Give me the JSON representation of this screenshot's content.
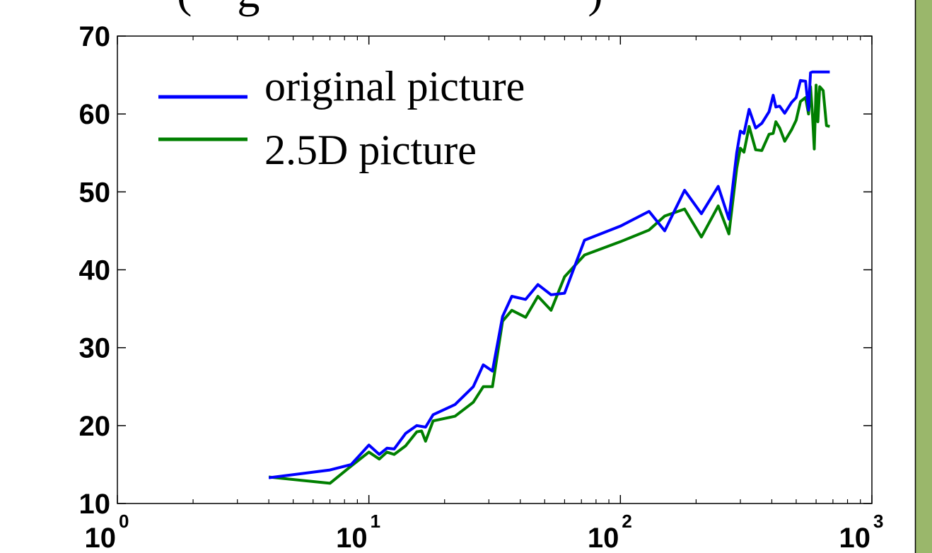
{
  "chart_data": {
    "type": "line",
    "title_fragment": "(    g                             )",
    "xscale": "log",
    "xlim": [
      1,
      1000
    ],
    "ylim": [
      10,
      70
    ],
    "grid": false,
    "legend_position": "top-left",
    "x_ticks": [
      {
        "value": 1,
        "base": "10",
        "exp": "0"
      },
      {
        "value": 10,
        "base": "10",
        "exp": "1"
      },
      {
        "value": 100,
        "base": "10",
        "exp": "2"
      },
      {
        "value": 1000,
        "base": "10",
        "exp": "3"
      }
    ],
    "y_ticks": [
      "10",
      "20",
      "30",
      "40",
      "50",
      "60",
      "70"
    ],
    "series": [
      {
        "name": "original picture",
        "color": "#0000ff",
        "x": [
          4,
          7,
          8.5,
          10,
          11,
          11.8,
          12.6,
          14,
          15.5,
          16.8,
          18,
          22,
          26,
          28.5,
          31,
          34,
          37,
          42,
          47,
          53,
          60,
          72,
          100,
          130,
          150,
          180,
          210,
          245,
          270,
          290,
          300,
          310,
          325,
          345,
          365,
          390,
          405,
          415,
          430,
          450,
          480,
          500,
          520,
          545,
          560,
          570,
          580,
          590,
          600,
          610,
          620,
          640,
          660,
          680
        ],
        "y": [
          13.3,
          14.3,
          15.0,
          17.5,
          16.3,
          17.1,
          17.0,
          19.0,
          20.0,
          19.8,
          21.4,
          22.7,
          25.0,
          27.8,
          27.0,
          34.0,
          36.6,
          36.2,
          38.1,
          36.8,
          37.0,
          43.8,
          45.6,
          47.5,
          45.0,
          50.2,
          47.2,
          50.7,
          46.5,
          55.0,
          57.8,
          57.5,
          60.6,
          58.2,
          58.8,
          60.3,
          62.4,
          60.9,
          61.0,
          60.1,
          61.5,
          62.1,
          64.3,
          64.2,
          60.5,
          65.3,
          65.4,
          65.4,
          65.4,
          65.4,
          65.4,
          65.4,
          65.4,
          65.4
        ]
      },
      {
        "name": "2.5D picture",
        "color": "#007f00",
        "x": [
          4,
          7,
          8.5,
          10,
          11,
          11.8,
          12.6,
          14,
          15.5,
          16.2,
          16.8,
          18,
          22,
          26,
          28.5,
          31,
          34,
          37,
          42,
          47,
          53,
          60,
          72,
          100,
          130,
          150,
          180,
          210,
          245,
          270,
          290,
          300,
          310,
          325,
          345,
          365,
          390,
          405,
          415,
          430,
          450,
          480,
          500,
          520,
          545,
          560,
          570,
          580,
          590,
          600,
          610,
          620,
          640,
          660,
          680
        ],
        "y": [
          13.4,
          12.6,
          14.8,
          16.6,
          15.7,
          16.6,
          16.3,
          17.4,
          19.2,
          19.3,
          18.0,
          20.6,
          21.2,
          23.0,
          25.0,
          25.0,
          33.4,
          34.8,
          33.9,
          36.6,
          34.8,
          39.1,
          41.9,
          43.6,
          45.1,
          46.9,
          47.8,
          44.2,
          48.2,
          44.6,
          53.0,
          55.6,
          55.1,
          58.4,
          55.4,
          55.3,
          57.4,
          57.5,
          59.0,
          58.2,
          56.5,
          58.0,
          59.2,
          61.6,
          62.1,
          60.0,
          63.5,
          60.0,
          55.5,
          63.7,
          59.0,
          63.5,
          63.0,
          58.5,
          58.4
        ]
      }
    ]
  }
}
